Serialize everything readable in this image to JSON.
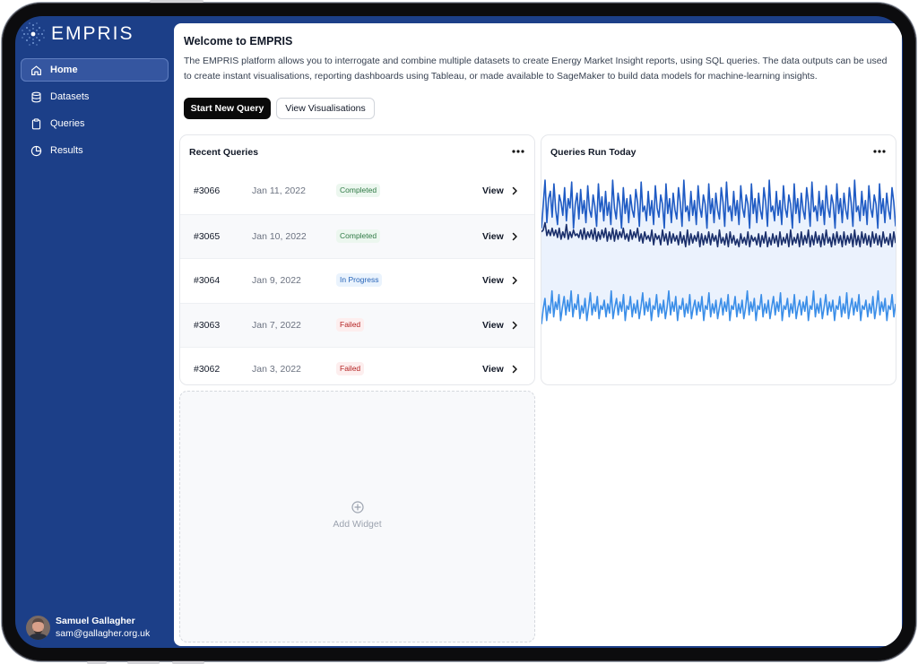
{
  "app": {
    "brand": "EMPRIS",
    "colors": {
      "sidebar": "#1c3f88",
      "accent": "#1f5bc4",
      "series_light": "#3b8ee8",
      "series_dark": "#1a2f6b"
    }
  },
  "sidebar": {
    "items": [
      {
        "label": "Home",
        "icon": "home-icon",
        "active": true
      },
      {
        "label": "Datasets",
        "icon": "database-icon",
        "active": false
      },
      {
        "label": "Queries",
        "icon": "clipboard-icon",
        "active": false
      },
      {
        "label": "Results",
        "icon": "pie-chart-icon",
        "active": false
      }
    ],
    "user": {
      "name": "Samuel Gallagher",
      "email": "sam@gallagher.org.uk"
    }
  },
  "main": {
    "title": "Welcome to EMPRIS",
    "description": "The EMPRIS platform allows you to interrogate and combine multiple datasets to create Energy Market Insight reports, using SQL queries. The data outputs can be used to create instant visualisations, reporting dashboards using Tableau, or made available to SageMaker to build data models for machine-learning insights.",
    "primary_button": "Start New Query",
    "secondary_button": "View Visualisations",
    "recent_queries": {
      "title": "Recent Queries",
      "rows": [
        {
          "id": "#3066",
          "date": "Jan 11, 2022",
          "status": "Completed",
          "status_kind": "completed",
          "action": "View"
        },
        {
          "id": "#3065",
          "date": "Jan 10, 2022",
          "status": "Completed",
          "status_kind": "completed",
          "action": "View"
        },
        {
          "id": "#3064",
          "date": "Jan 9, 2022",
          "status": "In Progress",
          "status_kind": "progress",
          "action": "View"
        },
        {
          "id": "#3063",
          "date": "Jan 7, 2022",
          "status": "Failed",
          "status_kind": "failed",
          "action": "View"
        },
        {
          "id": "#3062",
          "date": "Jan 3, 2022",
          "status": "Failed",
          "status_kind": "failed",
          "action": "View"
        }
      ]
    },
    "queries_today": {
      "title": "Queries Run Today"
    },
    "add_widget": "Add Widget"
  },
  "chart_data": {
    "type": "line",
    "title": "Queries Run Today",
    "series": [
      {
        "values": [
          70,
          71,
          75,
          68,
          71,
          68,
          72,
          68,
          71,
          67,
          72,
          66,
          70,
          67,
          74,
          66,
          70,
          67,
          71,
          68,
          69,
          67,
          71,
          66,
          72,
          66,
          70,
          67,
          71,
          66,
          72,
          65,
          70,
          66,
          71,
          67,
          72,
          65,
          70,
          66,
          72,
          65,
          71,
          66,
          70,
          67,
          72,
          66,
          69,
          65,
          71,
          66,
          70,
          67,
          72,
          65,
          69,
          64,
          70,
          66,
          68,
          65,
          71,
          63,
          69,
          66,
          68,
          63,
          71,
          65,
          69,
          63,
          70,
          64,
          69,
          65,
          68,
          63,
          70,
          64,
          68,
          62,
          71,
          63,
          69,
          64,
          68,
          65,
          70,
          62,
          69,
          63,
          68,
          64,
          70,
          63,
          69,
          65,
          68,
          62,
          71,
          64,
          67,
          63,
          69,
          62,
          70,
          64,
          68,
          63,
          66,
          62,
          69,
          64,
          67,
          63,
          70,
          62,
          68,
          65,
          67,
          63,
          69,
          62,
          68,
          64,
          70,
          62,
          67,
          63,
          69,
          64,
          68,
          62,
          70,
          63,
          67,
          64,
          69,
          62,
          71,
          63,
          67,
          64,
          69,
          62,
          70,
          63,
          68,
          64,
          71,
          62,
          68,
          63,
          70,
          64,
          68,
          62,
          69,
          63,
          71,
          64,
          67,
          62,
          69,
          63,
          70,
          64,
          68,
          62,
          70,
          63,
          68,
          64,
          69,
          62,
          71,
          63,
          68,
          62,
          70,
          64,
          69,
          63,
          68,
          62,
          70,
          64,
          69,
          63,
          68,
          62,
          70,
          64,
          67,
          63,
          69,
          62,
          70,
          64
        ]
      },
      {
        "values": [
          20,
          28,
          34,
          22,
          30,
          26,
          38,
          24,
          32,
          28,
          36,
          22,
          29,
          35,
          25,
          33,
          27,
          38,
          24,
          31,
          28,
          36,
          23,
          30,
          26,
          34,
          22,
          29,
          37,
          25,
          31,
          27,
          35,
          23,
          30,
          28,
          33,
          24,
          31,
          26,
          38,
          23,
          29,
          34,
          25,
          32,
          27,
          36,
          22,
          30,
          28,
          35,
          24,
          31,
          26,
          33,
          23,
          29,
          37,
          25,
          32,
          27,
          34,
          22,
          30,
          28,
          36,
          24,
          31,
          26,
          33,
          23,
          29,
          38,
          25,
          32,
          27,
          35,
          22,
          30,
          28,
          34,
          24,
          31,
          26,
          36,
          23,
          29,
          33,
          25,
          32,
          27,
          35,
          22,
          30,
          28,
          37,
          24,
          31,
          26,
          33,
          23,
          29,
          34,
          25,
          32,
          27,
          36,
          22,
          30,
          28,
          35,
          24,
          31,
          26,
          33,
          23,
          29,
          38,
          25,
          32,
          27,
          34,
          22,
          30,
          28,
          36,
          24,
          31,
          26,
          33,
          23,
          29,
          35,
          25,
          32,
          27,
          37,
          22,
          30,
          28,
          34,
          24,
          31,
          26,
          36,
          23,
          29,
          33,
          25,
          32,
          27,
          35,
          22,
          30,
          28,
          38,
          24,
          31,
          26,
          34,
          23,
          29,
          36,
          25,
          32,
          27,
          33,
          22,
          30,
          28,
          35,
          24,
          31,
          26,
          37,
          23,
          29,
          34,
          25,
          32,
          27,
          36,
          22,
          30,
          28,
          33,
          24,
          31,
          26,
          35,
          23,
          29,
          38,
          25,
          32,
          27,
          34,
          22,
          30,
          28,
          36,
          24,
          31
        ]
      },
      {
        "values": [
          72,
          85,
          98,
          75,
          88,
          92,
          78,
          96,
          82,
          74,
          90,
          86,
          79,
          94,
          76,
          88,
          83,
          97,
          72,
          85,
          91,
          77,
          93,
          80,
          87,
          75,
          95,
          82,
          78,
          90,
          84,
          73,
          96,
          81,
          89,
          76,
          92,
          79,
          86,
          74,
          98,
          83,
          77,
          91,
          85,
          72,
          94,
          80,
          88,
          75,
          90,
          82,
          78,
          93,
          86,
          73,
          97,
          81,
          84,
          76,
          92,
          79,
          87,
          74,
          95,
          83,
          78,
          90,
          85,
          72,
          96,
          80,
          88,
          75,
          91,
          82,
          77,
          94,
          86,
          73,
          98,
          81,
          84,
          76,
          92,
          79,
          87,
          74,
          95,
          83,
          78,
          90,
          85,
          72,
          96,
          80,
          88,
          75,
          91,
          82,
          77,
          94,
          86,
          73,
          97,
          81,
          84,
          76,
          92,
          79,
          87,
          74,
          95,
          83,
          78,
          90,
          85,
          72,
          96,
          80,
          88,
          75,
          91,
          82,
          77,
          94,
          86,
          73,
          98,
          81,
          84,
          76,
          92,
          79,
          87,
          74,
          95,
          83,
          78,
          90,
          85,
          72,
          96,
          80,
          88,
          75,
          91,
          82,
          77,
          94,
          86,
          73,
          97,
          81,
          84,
          76,
          92,
          79,
          87,
          74,
          95,
          83,
          78,
          90,
          85,
          72,
          96,
          80,
          88,
          75,
          91,
          82,
          77,
          94,
          86,
          73,
          98,
          81,
          84,
          76,
          92,
          79,
          87,
          74,
          95,
          83,
          78,
          90,
          85,
          72,
          96,
          80,
          88,
          75,
          91,
          82,
          77,
          94,
          86,
          73
        ]
      }
    ]
  }
}
